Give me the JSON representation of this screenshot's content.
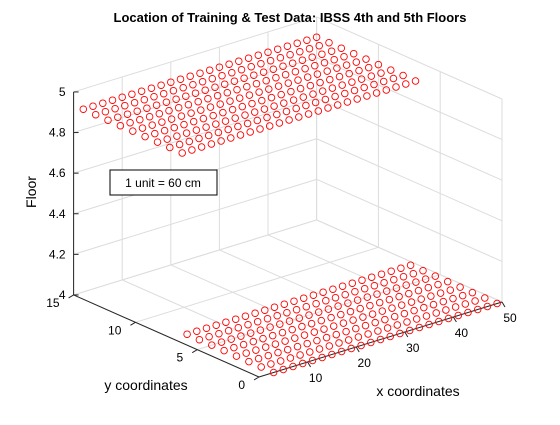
{
  "chart_data": {
    "type": "scatter",
    "title": "Location of Training & Test Data: IBSS 4th and 5th Floors",
    "xlabel": "x coordinates",
    "ylabel": "y coordinates",
    "zlabel": "Floor",
    "xlim": [
      0,
      50
    ],
    "ylim": [
      0,
      15
    ],
    "zlim": [
      4,
      5
    ],
    "x_ticks": [
      "10",
      "20",
      "30",
      "40",
      "50"
    ],
    "y_ticks": [
      "0",
      "5",
      "10",
      "15"
    ],
    "z_ticks": [
      "4",
      "4.2",
      "4.4",
      "4.6",
      "4.8",
      "5"
    ],
    "grid": true,
    "marker": "o",
    "colors": {
      "marker": "#ff0000",
      "axes": "#262626",
      "grid": "#dcdcdc",
      "text": "#000000"
    },
    "annotation": "1 unit = 60 cm",
    "series": [
      {
        "floor": 4.9,
        "x_range": [
          2,
          50
        ],
        "x_step": 2,
        "y_values": [
          7,
          8,
          9,
          10,
          11,
          12,
          13,
          14,
          15
        ]
      },
      {
        "floor": 4,
        "x_range": [
          3,
          49
        ],
        "x_step": 2,
        "y_values": [
          0,
          1,
          2,
          3,
          4,
          5,
          6,
          7
        ]
      }
    ]
  }
}
